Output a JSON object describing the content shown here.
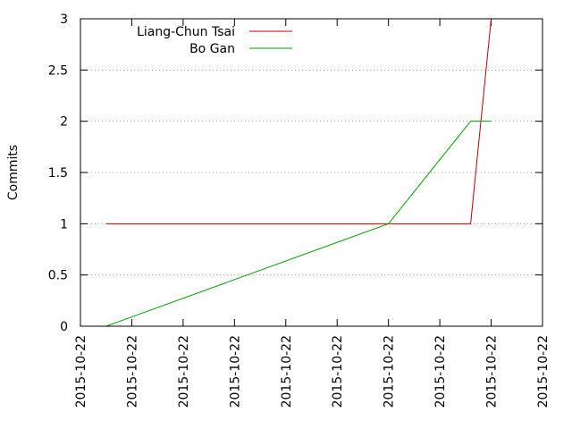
{
  "chart_data": {
    "type": "line",
    "title": "",
    "xlabel": "",
    "ylabel": "Commits",
    "ylim": [
      0,
      3
    ],
    "y_ticks": [
      "0",
      "0.5",
      "1",
      "1.5",
      "2",
      "2.5",
      "3"
    ],
    "x_tick_labels": [
      "2015-10-22",
      "2015-10-22",
      "2015-10-22",
      "2015-10-22",
      "2015-10-22",
      "2015-10-22",
      "2015-10-22",
      "2015-10-22",
      "2015-10-22",
      "2015-10-22"
    ],
    "grid": "horizontal dotted",
    "legend_position": "top-left",
    "series": [
      {
        "name": "Liang-Chun Tsai",
        "color": "#c00000",
        "points": [
          [
            0.5,
            1
          ],
          [
            7.6,
            1
          ],
          [
            8.0,
            3
          ]
        ]
      },
      {
        "name": "Bo Gan",
        "color": "#00a000",
        "points": [
          [
            0.5,
            0
          ],
          [
            6.0,
            1
          ],
          [
            7.6,
            2
          ],
          [
            8.0,
            2
          ]
        ]
      }
    ]
  }
}
